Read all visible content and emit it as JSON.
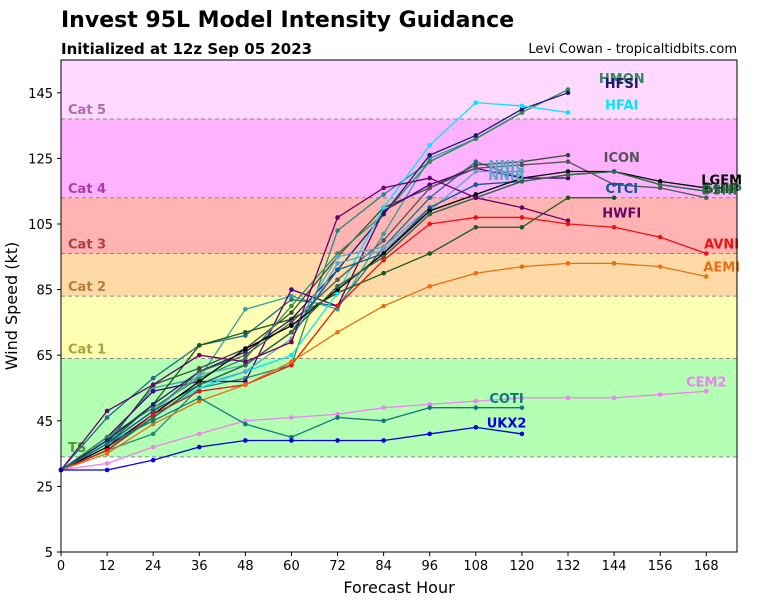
{
  "header": {
    "title": "Invest 95L Model Intensity Guidance",
    "subtitle": "Initialized at 12z Sep 05 2023",
    "credit": "Levi Cowan - tropicaltidbits.com"
  },
  "chart_data": {
    "type": "line",
    "xlabel": "Forecast Hour",
    "ylabel": "Wind Speed (kt)",
    "xlim": [
      0,
      176
    ],
    "ylim": [
      5,
      155
    ],
    "xticks": [
      0,
      12,
      24,
      36,
      48,
      60,
      72,
      84,
      96,
      108,
      120,
      132,
      144,
      156,
      168
    ],
    "yticks": [
      5,
      25,
      45,
      65,
      85,
      105,
      125,
      145
    ],
    "grid": false,
    "categories_bands": [
      {
        "name": "TS",
        "low": 34,
        "high": 64,
        "fill": "#b3ffb3",
        "text": "#4f9a34"
      },
      {
        "name": "Cat 1",
        "low": 64,
        "high": 83,
        "fill": "#ffffb3",
        "text": "#a9a53a"
      },
      {
        "name": "Cat 2",
        "low": 83,
        "high": 96,
        "fill": "#ffd9a6",
        "text": "#b27d3a"
      },
      {
        "name": "Cat 3",
        "low": 96,
        "high": 113,
        "fill": "#ffb3b3",
        "text": "#b23d3d"
      },
      {
        "name": "Cat 4",
        "low": 113,
        "high": 137,
        "fill": "#ffb3ff",
        "text": "#a83da8"
      },
      {
        "name": "Cat 5",
        "low": 137,
        "high": 155,
        "fill": "#ffd9ff",
        "text": "#b06ab0"
      }
    ],
    "series": [
      {
        "name": "HMON",
        "color": "#2e8b57",
        "label_x": 146,
        "label_y": 149.5,
        "x": [
          0,
          12,
          24,
          36,
          48,
          60,
          72,
          84,
          96,
          108,
          120,
          132
        ],
        "y": [
          30,
          40,
          49,
          58,
          64,
          80,
          96,
          108,
          124,
          131,
          139,
          146
        ]
      },
      {
        "name": "HFSI",
        "color": "#1a1a6e",
        "label_x": 146,
        "label_y": 148,
        "x": [
          0,
          12,
          24,
          36,
          48,
          60,
          72,
          84,
          96,
          108,
          120,
          132
        ],
        "y": [
          30,
          39,
          50,
          60,
          66,
          76,
          91,
          108,
          126,
          132,
          140,
          145
        ]
      },
      {
        "name": "HFAI",
        "color": "#00e5ff",
        "label_x": 146,
        "label_y": 141.5,
        "x": [
          0,
          12,
          24,
          36,
          48,
          60,
          72,
          84,
          96,
          108,
          120,
          132
        ],
        "y": [
          30,
          38,
          46,
          55,
          60,
          65,
          84,
          110,
          129,
          142,
          141,
          139
        ]
      },
      {
        "name": "ICON",
        "color": "#555555",
        "label_x": 146,
        "label_y": 125.5,
        "x": [
          0,
          12,
          24,
          36,
          48,
          60,
          72,
          84,
          96,
          108,
          120,
          132,
          144,
          156,
          168
        ],
        "y": [
          30,
          38,
          48,
          60,
          65,
          75,
          88,
          100,
          116,
          122,
          123,
          124,
          117,
          116,
          113
        ]
      },
      {
        "name": "NNIC",
        "color": "#5aa7c9",
        "label_x": 116,
        "label_y": 123,
        "x": [
          0,
          12,
          24,
          36,
          48,
          60,
          72,
          84,
          96,
          108,
          120
        ],
        "y": [
          30,
          38,
          48,
          59,
          62,
          72,
          95,
          98,
          110,
          117,
          118
        ]
      },
      {
        "name": "NNIB",
        "color": "#5aa7c9",
        "label_x": 116,
        "label_y": 120,
        "x": [
          0,
          12,
          24,
          36,
          48,
          60,
          72,
          84,
          96,
          108,
          120
        ],
        "y": [
          30,
          37,
          46,
          56,
          60,
          70,
          93,
          97,
          109,
          121,
          121
        ]
      },
      {
        "name": "CTCI",
        "color": "#0a5a9a",
        "label_x": 146,
        "label_y": 116,
        "x": [
          0,
          12,
          24,
          36,
          48,
          60,
          72,
          84,
          96,
          108,
          120
        ],
        "y": [
          30,
          38,
          48,
          56,
          62,
          72,
          91,
          96,
          110,
          117,
          118
        ]
      },
      {
        "name": "LGEM",
        "color": "#000000",
        "label_x": 172,
        "label_y": 118.5,
        "x": [
          0,
          12,
          24,
          36,
          48,
          60,
          72,
          84,
          96,
          108,
          120,
          132,
          144,
          156,
          168
        ],
        "y": [
          30,
          37,
          47,
          57,
          67,
          74,
          85,
          96,
          109,
          114,
          119,
          121,
          121,
          118,
          116
        ]
      },
      {
        "name": "SHIP",
        "color": "#0b4f0b",
        "label_x": 172,
        "label_y": 116,
        "x": [
          0,
          12,
          24,
          36,
          48,
          60,
          72,
          84,
          96,
          108,
          120,
          132,
          144,
          156,
          168
        ],
        "y": [
          30,
          36,
          46,
          56,
          62,
          72,
          86,
          95,
          108,
          113,
          118,
          120,
          121,
          117,
          115
        ]
      },
      {
        "name": "DSHP",
        "color": "#2f6b4f",
        "label_x": 172,
        "label_y": 115.5,
        "x": [
          0,
          12,
          24,
          36,
          48,
          60,
          72,
          84,
          96,
          108,
          120,
          132,
          144,
          156,
          168
        ],
        "y": [
          30,
          36,
          46,
          56,
          62,
          72,
          86,
          95,
          108,
          113,
          118,
          120,
          121,
          117,
          115
        ]
      },
      {
        "name": "HWFI",
        "color": "#6a006a",
        "label_x": 146,
        "label_y": 108.5,
        "x": [
          0,
          12,
          24,
          36,
          48,
          60,
          72,
          84,
          96,
          108,
          120,
          132
        ],
        "y": [
          30,
          48,
          56,
          65,
          63,
          69,
          107,
          116,
          119,
          113,
          110,
          106
        ]
      },
      {
        "name": "AVNI",
        "color": "#ee1111",
        "label_x": 172,
        "label_y": 99,
        "x": [
          0,
          12,
          24,
          36,
          48,
          60,
          72,
          84,
          96,
          108,
          120,
          132,
          144,
          156,
          168
        ],
        "y": [
          30,
          36,
          47,
          54,
          56,
          62,
          80,
          94,
          105,
          107,
          107,
          105,
          104,
          101,
          96
        ]
      },
      {
        "name": "AEMI",
        "color": "#e86f12",
        "label_x": 172,
        "label_y": 92,
        "x": [
          0,
          12,
          24,
          36,
          48,
          60,
          72,
          84,
          96,
          108,
          120,
          132,
          144,
          156,
          168
        ],
        "y": [
          30,
          35,
          44,
          51,
          56,
          63,
          72,
          80,
          86,
          90,
          92,
          93,
          93,
          92,
          89
        ]
      },
      {
        "name": "CEM2",
        "color": "#ee82ee",
        "label_x": 168,
        "label_y": 57,
        "x": [
          0,
          12,
          24,
          36,
          48,
          60,
          72,
          84,
          96,
          108,
          120,
          132,
          144,
          156,
          168
        ],
        "y": [
          30,
          32,
          37,
          41,
          45,
          46,
          47,
          49,
          50,
          51,
          52,
          52,
          52,
          53,
          54
        ]
      },
      {
        "name": "COTI",
        "color": "#0e7a7a",
        "label_x": 116,
        "label_y": 52,
        "x": [
          0,
          12,
          24,
          36,
          48,
          60,
          72,
          84,
          96,
          108,
          120
        ],
        "y": [
          30,
          38,
          45,
          52,
          44,
          40,
          46,
          45,
          49,
          49,
          49
        ]
      },
      {
        "name": "UKX2",
        "color": "#0000dd",
        "label_x": 116,
        "label_y": 44.5,
        "x": [
          0,
          12,
          24,
          36,
          48,
          60,
          72,
          84,
          96,
          108,
          120
        ],
        "y": [
          30,
          30,
          33,
          37,
          39,
          39,
          39,
          39,
          41,
          43,
          41
        ]
      }
    ],
    "extra_lines": [
      {
        "color": "#1e6e8a",
        "x": [
          0,
          12,
          24,
          36,
          48,
          60,
          72,
          84,
          96,
          108,
          120
        ],
        "y": [
          30,
          46,
          58,
          68,
          71,
          82,
          80,
          98,
          113,
          124,
          119
        ]
      },
      {
        "color": "#33a0a0",
        "x": [
          0,
          12,
          24,
          36,
          48,
          60,
          72,
          84,
          96,
          108,
          120
        ],
        "y": [
          30,
          39,
          55,
          58,
          79,
          83,
          79,
          102,
          125,
          131,
          139
        ]
      },
      {
        "color": "#2a8a7a",
        "x": [
          0,
          12,
          24,
          36,
          48,
          60,
          72,
          84,
          96,
          108,
          120
        ],
        "y": [
          30,
          36,
          41,
          55,
          58,
          62,
          103,
          114,
          124,
          131,
          139
        ]
      },
      {
        "color": "#3a4a3a",
        "x": [
          0,
          12,
          24,
          36,
          48,
          60,
          72,
          84,
          96,
          108,
          120,
          132
        ],
        "y": [
          30,
          38,
          56,
          61,
          67,
          78,
          95,
          110,
          116,
          123,
          124,
          126
        ]
      },
      {
        "color": "#4b0082",
        "x": [
          0,
          12,
          24,
          36,
          48,
          60,
          72,
          84,
          96,
          108,
          120,
          132
        ],
        "y": [
          30,
          40,
          54,
          57,
          57,
          85,
          80,
          109,
          117,
          122,
          119,
          119
        ]
      },
      {
        "color": "#1a5a1a",
        "x": [
          0,
          12,
          24,
          36,
          48,
          60,
          72,
          84,
          96,
          108,
          120,
          132,
          144
        ],
        "y": [
          30,
          38,
          50,
          68,
          72,
          76,
          84,
          90,
          96,
          104,
          104,
          113,
          113
        ]
      }
    ]
  }
}
